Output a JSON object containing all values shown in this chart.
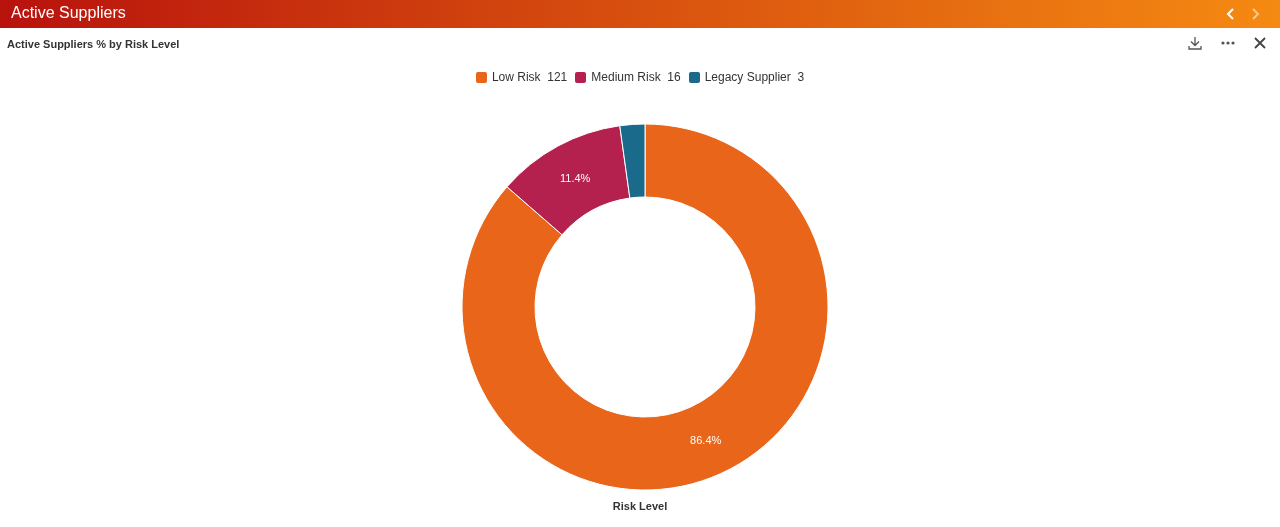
{
  "chart_data": {
    "type": "donut",
    "title": "Active Suppliers",
    "subtitle": "Active Suppliers % by Risk Level",
    "xlabel": "Risk Level",
    "categories": [
      "Low Risk  121",
      "Medium Risk  16",
      "Legacy Supplier  3"
    ],
    "values": [
      86.4,
      11.4,
      2.2
    ],
    "colors": [
      "#e8651a",
      "#b5214e",
      "#1a6a8c"
    ],
    "value_labels": [
      "86.4%",
      "11.4%",
      null
    ],
    "legend": "top"
  }
}
